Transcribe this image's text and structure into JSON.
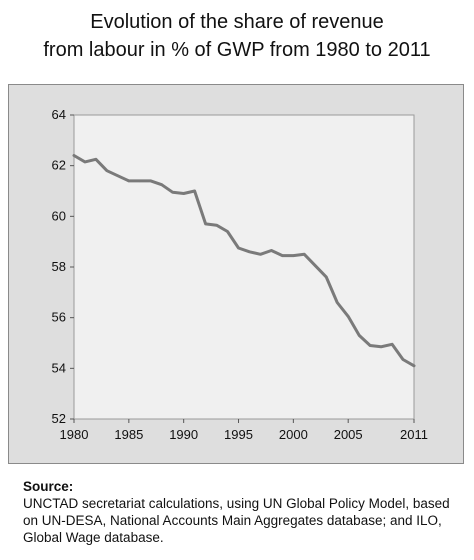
{
  "title": {
    "line1": "Evolution of the share of revenue",
    "line2": "from labour in % of GWP from 1980 to 2011"
  },
  "source": {
    "heading": "Source:",
    "text": "UNCTAD secretariat calculations, using UN Global Policy Model, based on UN-DESA, National Accounts Main Aggregates database; and ILO, Global Wage database."
  },
  "colors": {
    "line": "#7a7a7a",
    "plot_background": "#f0f0f0",
    "panel_background": "#dedede"
  },
  "chart_data": {
    "type": "line",
    "title": "Evolution of the share of revenue from labour in % of GWP from 1980 to 2011",
    "xlabel": "",
    "ylabel": "",
    "xlim": [
      1980,
      2011
    ],
    "ylim": [
      52,
      64
    ],
    "xticks": [
      1980,
      1985,
      1990,
      1995,
      2000,
      2005,
      2011
    ],
    "yticks": [
      52,
      54,
      56,
      58,
      60,
      62,
      64
    ],
    "grid": false,
    "legend": "none",
    "x": [
      1980,
      1981,
      1982,
      1983,
      1984,
      1985,
      1986,
      1987,
      1988,
      1989,
      1990,
      1991,
      1992,
      1993,
      1994,
      1995,
      1996,
      1997,
      1998,
      1999,
      2000,
      2001,
      2002,
      2003,
      2004,
      2005,
      2006,
      2007,
      2008,
      2009,
      2010,
      2011
    ],
    "series": [
      {
        "values": [
          62.4,
          62.15,
          62.25,
          61.8,
          61.6,
          61.4,
          61.4,
          61.4,
          61.25,
          60.95,
          60.9,
          61.0,
          59.7,
          59.65,
          59.4,
          58.75,
          58.6,
          58.5,
          58.65,
          58.45,
          58.45,
          58.5,
          58.05,
          57.6,
          56.6,
          56.05,
          55.3,
          54.9,
          54.85,
          54.95,
          54.35,
          54.1
        ]
      }
    ]
  }
}
